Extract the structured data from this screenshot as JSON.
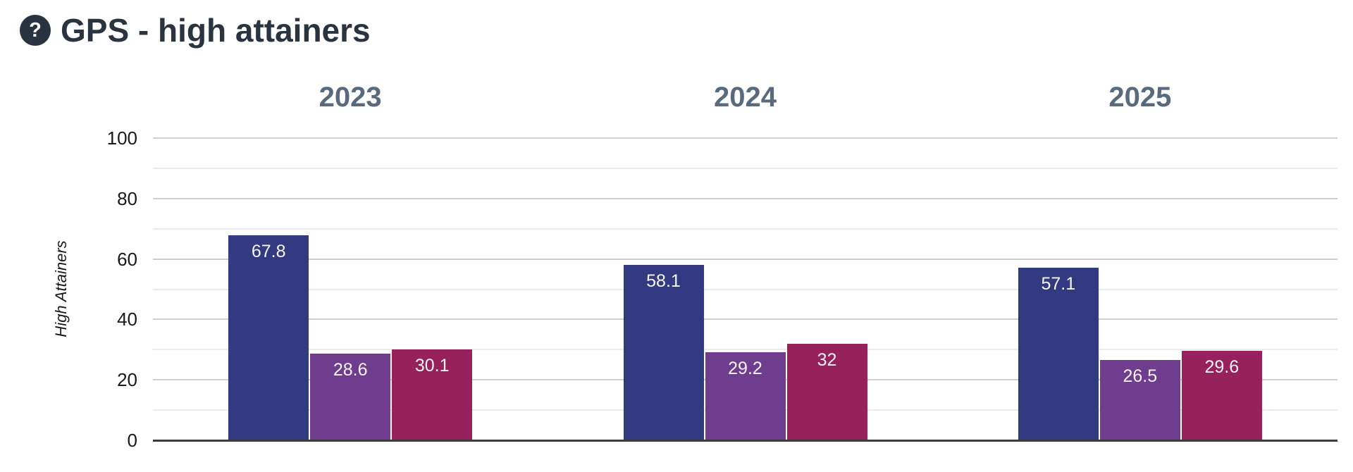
{
  "header": {
    "title": "GPS - high attainers",
    "help_icon": {
      "name": "question-mark-icon",
      "glyph": "?"
    }
  },
  "chart_data": {
    "type": "bar",
    "title": "GPS - high attainers",
    "ylabel": "High Attainers",
    "ylim": [
      0,
      100
    ],
    "yticks": [
      0,
      20,
      40,
      60,
      80,
      100
    ],
    "grid_step": 10,
    "grid": true,
    "legend": "none",
    "facets": [
      {
        "label": "2023",
        "values": [
          67.8,
          28.6,
          30.1
        ],
        "value_labels": [
          "67.8",
          "28.6",
          "30.1"
        ]
      },
      {
        "label": "2024",
        "values": [
          58.1,
          29.2,
          32
        ],
        "value_labels": [
          "58.1",
          "29.2",
          "32"
        ]
      },
      {
        "label": "2025",
        "values": [
          57.1,
          26.5,
          29.6
        ],
        "value_labels": [
          "57.1",
          "26.5",
          "29.6"
        ]
      }
    ],
    "bar_colors": [
      "#323a82",
      "#6f3c8e",
      "#97215a"
    ]
  },
  "colors": {
    "background": "#ffffff",
    "title_text": "#2a3440",
    "help_icon_bg": "#2a3440",
    "facet_title": "#5a6a7d",
    "tick_label": "#16191d",
    "axis_line": "#3a3a3a",
    "grid_major": "#cfcfcf",
    "grid_minor": "#ebebeb",
    "bar_value_label": "#f8f4f8"
  }
}
